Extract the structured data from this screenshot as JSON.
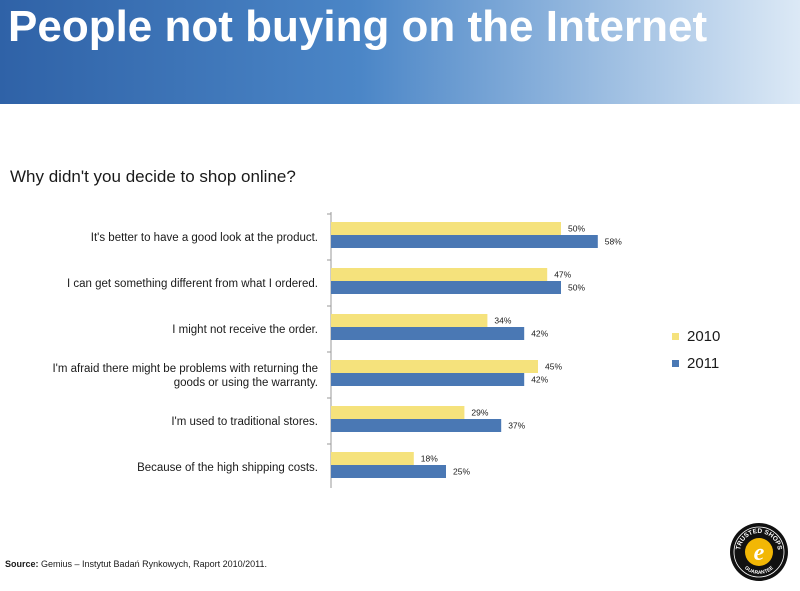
{
  "page": {
    "title": "People not buying on the Internet",
    "question": "Why didn't you decide to shop online?",
    "source_label": "Source:",
    "source_text": "Gemius – Instytut Badań Rynkowych, Raport 2010/2011.",
    "logo": {
      "arc_top": "TRUSTED SHOPS",
      "arc_bottom": "GUARANTEE",
      "glyph": "e"
    }
  },
  "colors": {
    "banner": "#3b73b8",
    "series_2010": "#f5e27c",
    "series_2011": "#4a78b4"
  },
  "chart_data": {
    "type": "bar",
    "orientation": "horizontal",
    "title": "Why didn't you decide to shop online?",
    "categories": [
      "It's better to have a good look at the product.",
      "I can get something different from what I ordered.",
      "I might not receive the order.",
      "I'm afraid there might be problems with returning the goods or using the warranty.",
      "I'm used to traditional stores.",
      "Because of the high shipping costs."
    ],
    "category_lines": [
      [
        "It's better to have a good look at the product."
      ],
      [
        "I can get something different from what I ordered."
      ],
      [
        "I might not receive the order."
      ],
      [
        "I'm afraid there might be problems with returning the",
        "goods or using the warranty."
      ],
      [
        "I'm used to traditional stores."
      ],
      [
        "Because of the high shipping costs."
      ]
    ],
    "series": [
      {
        "name": "2010",
        "values": [
          50,
          47,
          34,
          45,
          29,
          18
        ],
        "labels": [
          "50%",
          "47%",
          "34%",
          "45%",
          "29%",
          "18%"
        ]
      },
      {
        "name": "2011",
        "values": [
          58,
          50,
          42,
          42,
          37,
          25
        ],
        "labels": [
          "58%",
          "50%",
          "42%",
          "42%",
          "37%",
          "25%"
        ]
      }
    ],
    "xlim": [
      0,
      100
    ],
    "grid": false,
    "legend_position": "right"
  }
}
